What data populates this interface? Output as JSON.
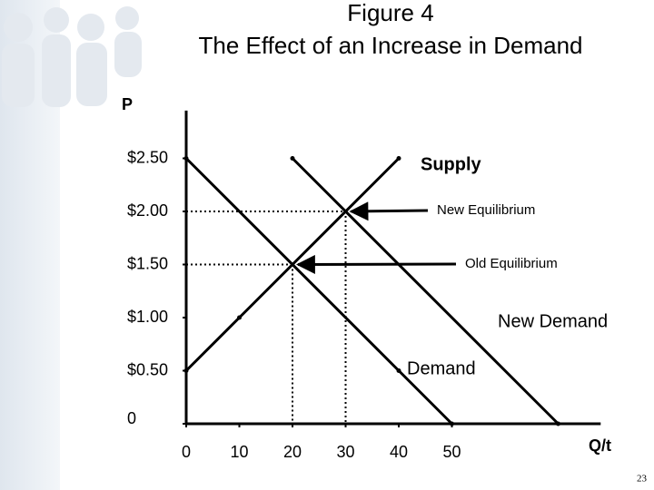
{
  "chart_data": {
    "type": "line",
    "title": "Figure 4",
    "subtitle": "The Effect of an Increase in Demand",
    "y_label": "P",
    "x_label": "Q/t",
    "page_number": "23",
    "xlim": [
      0,
      78
    ],
    "ylim": [
      0,
      2.95
    ],
    "xticks": [
      0,
      10,
      20,
      30,
      40,
      50
    ],
    "yticks": [
      0,
      {
        "value": 0.5,
        "label": "$0.50"
      },
      {
        "value": 1.0,
        "label": "$1.00"
      },
      {
        "value": 1.5,
        "label": "$1.50"
      },
      {
        "value": 2.0,
        "label": "$2.00"
      },
      {
        "value": 2.5,
        "label": "$2.50"
      }
    ],
    "grid": false,
    "color": "#000000",
    "series": [
      {
        "name": "Supply",
        "x": [
          0,
          10,
          40
        ],
        "values": [
          0.5,
          1.0,
          2.5
        ]
      },
      {
        "name": "Demand",
        "x": [
          0,
          40,
          50
        ],
        "values": [
          2.5,
          0.5,
          0
        ]
      },
      {
        "name": "New Demand",
        "x": [
          20,
          70
        ],
        "values": [
          2.5,
          0
        ]
      }
    ],
    "annotations": [
      {
        "text": "New Equilibrium",
        "x": 30,
        "y": 2.0
      },
      {
        "text": "Old Equilibrium",
        "x": 20,
        "y": 1.5
      }
    ]
  }
}
